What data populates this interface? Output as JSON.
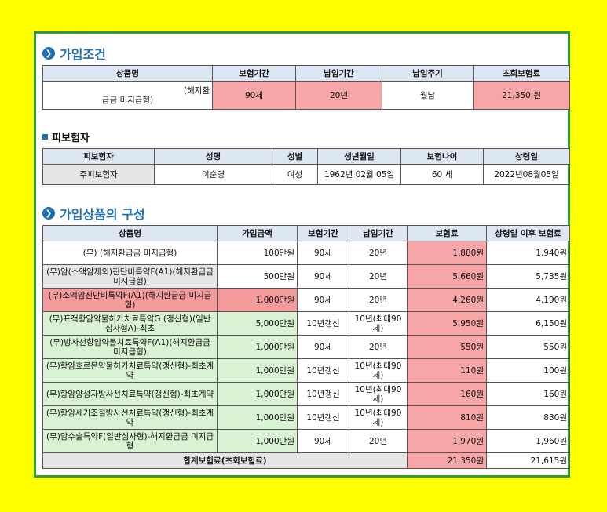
{
  "sections": {
    "conditions": "가입조건",
    "insured": "피보험자",
    "composition": "가입상품의 구성"
  },
  "conditions": {
    "headers": [
      "상품명",
      "보험기간",
      "납입기간",
      "납입주기",
      "초회보험료"
    ],
    "product_line1": "(해지환",
    "product_line2": "급금 미지급형)",
    "period": "90세",
    "pay_period": "20년",
    "pay_cycle": "월납",
    "premium": "21,350 원"
  },
  "insured": {
    "headers": [
      "피보험자",
      "성명",
      "성별",
      "생년월일",
      "보험나이",
      "상령일"
    ],
    "row": [
      "주피보험자",
      "이순영",
      "여성",
      "1962년 02월 05일",
      "60 세",
      "2022년08월05일"
    ]
  },
  "composition": {
    "headers": [
      "상품명",
      "가입금액",
      "보험기간",
      "납입기간",
      "보험료",
      "상령일 이후 보험료"
    ],
    "rows": [
      {
        "name": "(무)                    (해지환급금 미지급형)",
        "amount": "100만원",
        "period": "90세",
        "pay": "20년",
        "premium": "1,880원",
        "after": "1,940원",
        "style": "white"
      },
      {
        "name": "(무)암(소액암제외)진단비특약F(A1)(해지환급금 미지급형)",
        "amount": "500만원",
        "period": "90세",
        "pay": "20년",
        "premium": "5,660원",
        "after": "5,735원",
        "style": "gray"
      },
      {
        "name": "(무)소액암진단비특약F(A1)(해지환급금 미지급형)",
        "amount": "1,000만원",
        "period": "90세",
        "pay": "20년",
        "premium": "4,260원",
        "after": "4,190원",
        "style": "red"
      },
      {
        "name": "(무)표적항암약물허가치료특약G (갱신형)(일반심사형A)-최초",
        "amount": "5,000만원",
        "period": "10년갱신",
        "pay": "10년(최대90세)",
        "premium": "5,950원",
        "after": "6,150원",
        "style": "green"
      },
      {
        "name": "(무)방사선항암약물치료특약F(A1)(해지환급금 미지급형)",
        "amount": "1,000만원",
        "period": "90세",
        "pay": "20년",
        "premium": "550원",
        "after": "550원",
        "style": "green"
      },
      {
        "name": "(무)항암호르몬약물허가치료특약(갱신형)-최초계약",
        "amount": "1,000만원",
        "period": "10년갱신",
        "pay": "10년(최대90세)",
        "premium": "110원",
        "after": "100원",
        "style": "green"
      },
      {
        "name": "(무)항암양성자방사선치료특약(갱신형)-최초계약",
        "amount": "1,000만원",
        "period": "10년갱신",
        "pay": "10년(최대90세)",
        "premium": "160원",
        "after": "160원",
        "style": "green"
      },
      {
        "name": "(무)항암세기조절방사선치료특약(갱신형)-최초계약",
        "amount": "1,000만원",
        "period": "10년갱신",
        "pay": "10년(최대90세)",
        "premium": "810원",
        "after": "830원",
        "style": "green"
      },
      {
        "name": "(무)암수술특약F(일반심사형)-해지환급금 미지급형",
        "amount": "1,000만원",
        "period": "90세",
        "pay": "20년",
        "premium": "1,970원",
        "after": "1,960원",
        "style": "green"
      }
    ],
    "total_label": "합계보험료(초회보험료)",
    "total_premium": "21,350원",
    "total_after": "21,615원"
  },
  "colors": {
    "border": "#2e9a3a",
    "background": "#ffff00",
    "accent": "#1f6fb2",
    "highlight": "#f6a6a6"
  }
}
